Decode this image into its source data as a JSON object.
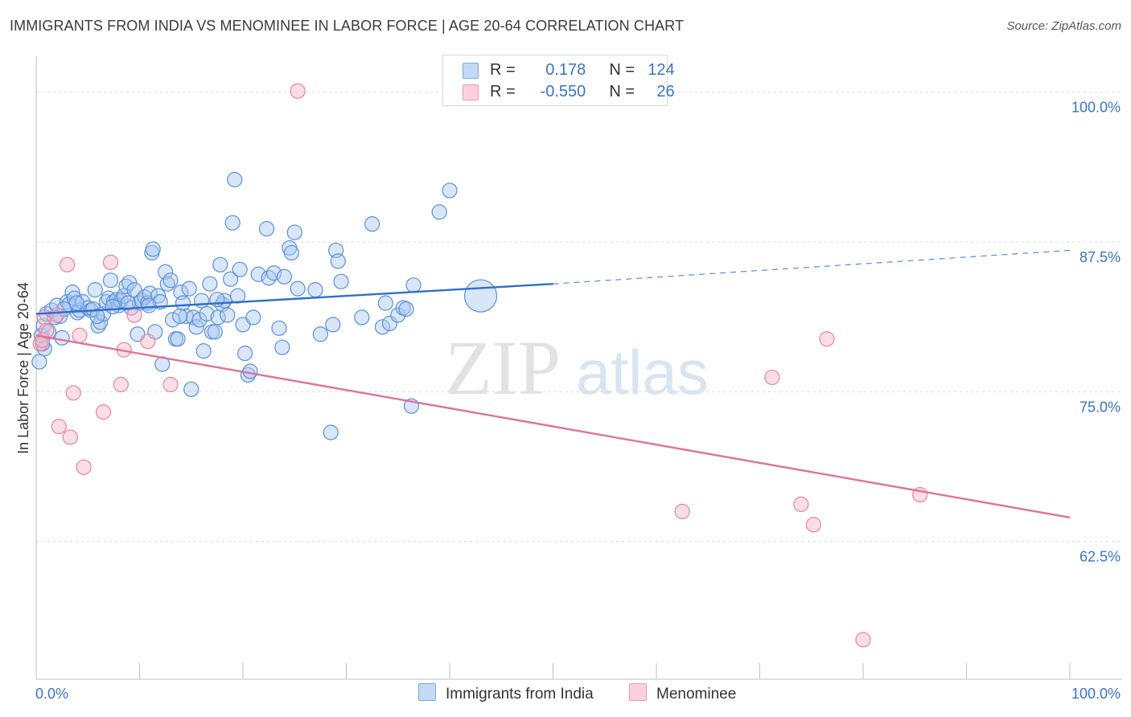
{
  "header": {
    "title": "IMMIGRANTS FROM INDIA VS MENOMINEE IN LABOR FORCE | AGE 20-64 CORRELATION CHART",
    "source": "Source: ZipAtlas.com"
  },
  "watermark": {
    "zip": "ZIP",
    "atlas": "atlas"
  },
  "legend": {
    "r_label": "R =",
    "n_label": "N =",
    "rows": [
      {
        "r": "0.178",
        "n": "124",
        "color": "#a9c8f0"
      },
      {
        "r": "-0.550",
        "n": "26",
        "color": "#f5b5c8"
      }
    ]
  },
  "chart_data": {
    "type": "scatter",
    "xlabel": "",
    "ylabel": "In Labor Force | Age 20-64",
    "xlim": [
      0,
      100
    ],
    "ylim": [
      51,
      103
    ],
    "x_tick_labels": [
      "0.0%",
      "100.0%"
    ],
    "y_ticks": [
      {
        "value": 100,
        "label": "100.0%"
      },
      {
        "value": 87.5,
        "label": "87.5%"
      },
      {
        "value": 75,
        "label": "75.0%"
      },
      {
        "value": 62.5,
        "label": "62.5%"
      }
    ],
    "series": [
      {
        "name": "Immigrants from India",
        "color": "#5b8fd6",
        "fill": "#a9c8f0",
        "trend": {
          "x0": 0,
          "y0": 81.5,
          "x1": 50,
          "y1": 84.0,
          "dash_to_x": 100,
          "dash_to_y": 86.8,
          "color": "#2e6fcb"
        },
        "points": [
          [
            0.5,
            79.7
          ],
          [
            0.7,
            80.5
          ],
          [
            0.8,
            78.6
          ],
          [
            1.0,
            81.5
          ],
          [
            1.2,
            80.0
          ],
          [
            1.5,
            81.8
          ],
          [
            2.0,
            82.2
          ],
          [
            2.3,
            81.3
          ],
          [
            2.5,
            79.5
          ],
          [
            3.0,
            82.5
          ],
          [
            3.2,
            82.3
          ],
          [
            3.5,
            83.3
          ],
          [
            3.7,
            82.8
          ],
          [
            4.0,
            81.6
          ],
          [
            4.2,
            81.8
          ],
          [
            4.5,
            82.5
          ],
          [
            5.0,
            82.0
          ],
          [
            5.3,
            81.8
          ],
          [
            5.5,
            81.9
          ],
          [
            5.7,
            83.5
          ],
          [
            6.0,
            80.5
          ],
          [
            6.2,
            80.8
          ],
          [
            6.5,
            81.5
          ],
          [
            6.8,
            82.5
          ],
          [
            7.0,
            82.8
          ],
          [
            7.2,
            84.3
          ],
          [
            7.5,
            82.5
          ],
          [
            7.8,
            82.7
          ],
          [
            8.0,
            82.2
          ],
          [
            8.2,
            82.6
          ],
          [
            8.5,
            83.0
          ],
          [
            8.7,
            83.8
          ],
          [
            9.0,
            84.1
          ],
          [
            9.2,
            82.0
          ],
          [
            9.5,
            83.5
          ],
          [
            9.8,
            79.8
          ],
          [
            10.0,
            82.4
          ],
          [
            10.2,
            82.6
          ],
          [
            10.5,
            82.9
          ],
          [
            10.8,
            82.4
          ],
          [
            11.0,
            83.2
          ],
          [
            11.2,
            86.6
          ],
          [
            11.3,
            86.9
          ],
          [
            11.5,
            80.0
          ],
          [
            11.8,
            83.0
          ],
          [
            12.0,
            82.5
          ],
          [
            12.2,
            77.3
          ],
          [
            12.5,
            85.0
          ],
          [
            12.7,
            84.0
          ],
          [
            13.0,
            84.3
          ],
          [
            13.2,
            81.0
          ],
          [
            13.5,
            79.4
          ],
          [
            13.7,
            79.4
          ],
          [
            14.0,
            83.3
          ],
          [
            14.2,
            82.4
          ],
          [
            14.5,
            81.3
          ],
          [
            14.8,
            83.6
          ],
          [
            15.0,
            75.2
          ],
          [
            15.2,
            81.2
          ],
          [
            15.5,
            80.4
          ],
          [
            15.8,
            81.0
          ],
          [
            16.0,
            82.6
          ],
          [
            16.2,
            78.4
          ],
          [
            16.5,
            81.5
          ],
          [
            16.8,
            84.0
          ],
          [
            17.0,
            80.0
          ],
          [
            17.3,
            80.0
          ],
          [
            17.6,
            81.2
          ],
          [
            17.8,
            85.6
          ],
          [
            18.0,
            82.3
          ],
          [
            18.2,
            82.6
          ],
          [
            18.5,
            81.4
          ],
          [
            18.8,
            84.4
          ],
          [
            19.0,
            89.1
          ],
          [
            19.2,
            92.7
          ],
          [
            19.5,
            83.0
          ],
          [
            19.7,
            85.2
          ],
          [
            20.0,
            80.6
          ],
          [
            20.2,
            78.2
          ],
          [
            20.5,
            76.4
          ],
          [
            20.7,
            76.7
          ],
          [
            21.0,
            81.2
          ],
          [
            21.5,
            84.8
          ],
          [
            22.3,
            88.6
          ],
          [
            22.5,
            84.5
          ],
          [
            23.0,
            84.9
          ],
          [
            23.5,
            80.3
          ],
          [
            23.8,
            78.7
          ],
          [
            24.0,
            84.6
          ],
          [
            24.5,
            87.0
          ],
          [
            24.7,
            86.6
          ],
          [
            25.0,
            88.3
          ],
          [
            25.3,
            83.6
          ],
          [
            27.0,
            83.5
          ],
          [
            27.5,
            79.8
          ],
          [
            28.5,
            71.6
          ],
          [
            28.7,
            80.6
          ],
          [
            29.0,
            86.8
          ],
          [
            29.2,
            85.9
          ],
          [
            29.5,
            84.2
          ],
          [
            31.5,
            81.2
          ],
          [
            32.5,
            89.0
          ],
          [
            33.5,
            80.4
          ],
          [
            33.8,
            82.4
          ],
          [
            34.2,
            80.7
          ],
          [
            35.0,
            81.4
          ],
          [
            35.5,
            82.0
          ],
          [
            35.8,
            81.9
          ],
          [
            36.3,
            73.8
          ],
          [
            36.5,
            83.9
          ],
          [
            39.0,
            90.0
          ],
          [
            40.0,
            91.8
          ],
          [
            43.0,
            83.0
          ],
          [
            0.3,
            77.5
          ],
          [
            0.6,
            79.0
          ],
          [
            1.8,
            81.2
          ],
          [
            2.7,
            81.9
          ],
          [
            3.9,
            82.4
          ],
          [
            5.9,
            81.3
          ],
          [
            7.4,
            82.1
          ],
          [
            8.9,
            82.4
          ],
          [
            10.9,
            82.2
          ],
          [
            13.9,
            81.3
          ],
          [
            17.5,
            82.7
          ]
        ]
      },
      {
        "name": "Menominee",
        "color": "#e8829f",
        "fill": "#f5b5c8",
        "trend": {
          "x0": 0,
          "y0": 79.7,
          "x1": 100,
          "y1": 64.5,
          "color": "#e0729a"
        },
        "points": [
          [
            0.4,
            79.0
          ],
          [
            0.6,
            79.3
          ],
          [
            0.8,
            81.2
          ],
          [
            1.0,
            80.1
          ],
          [
            2.0,
            81.4
          ],
          [
            2.2,
            72.1
          ],
          [
            3.0,
            85.6
          ],
          [
            3.3,
            71.2
          ],
          [
            3.6,
            74.9
          ],
          [
            4.2,
            79.7
          ],
          [
            4.6,
            68.7
          ],
          [
            6.5,
            73.3
          ],
          [
            7.2,
            85.8
          ],
          [
            8.2,
            75.6
          ],
          [
            8.5,
            78.5
          ],
          [
            9.5,
            81.4
          ],
          [
            10.8,
            79.2
          ],
          [
            13.0,
            75.6
          ],
          [
            25.3,
            100.1
          ],
          [
            62.5,
            65.0
          ],
          [
            71.2,
            76.2
          ],
          [
            74.0,
            65.6
          ],
          [
            75.2,
            63.9
          ],
          [
            76.5,
            79.4
          ],
          [
            80.0,
            54.3
          ],
          [
            85.5,
            66.4
          ]
        ]
      }
    ]
  }
}
